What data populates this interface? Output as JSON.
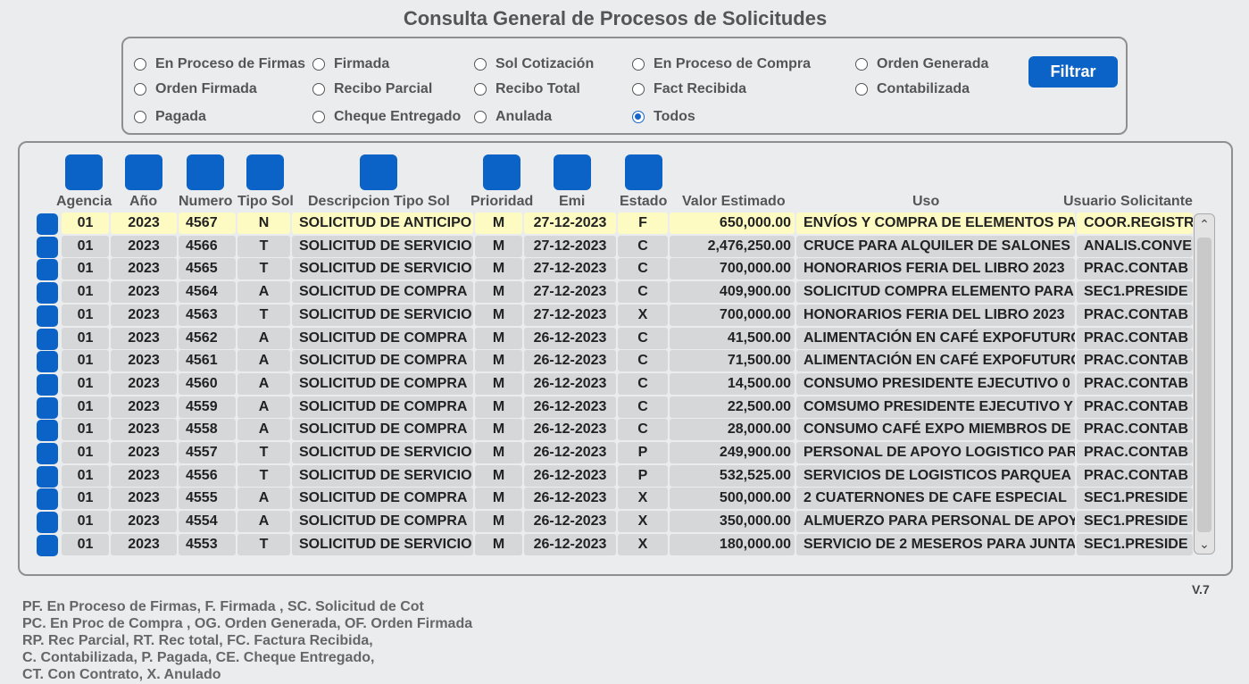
{
  "title": "Consulta General de Procesos de Solicitudes",
  "filters": [
    {
      "label": "En Proceso de Firmas",
      "selected": false
    },
    {
      "label": "Firmada",
      "selected": false
    },
    {
      "label": "Sol Cotización",
      "selected": false
    },
    {
      "label": "En Proceso de Compra",
      "selected": false
    },
    {
      "label": "Orden Generada",
      "selected": false
    },
    {
      "label": "Orden Firmada",
      "selected": false
    },
    {
      "label": "Recibo Parcial",
      "selected": false
    },
    {
      "label": "Recibo Total",
      "selected": false
    },
    {
      "label": "Fact Recibida",
      "selected": false
    },
    {
      "label": "Contabilizada",
      "selected": false
    },
    {
      "label": "Pagada",
      "selected": false
    },
    {
      "label": "Cheque Entregado",
      "selected": false
    },
    {
      "label": "Anulada",
      "selected": false
    },
    {
      "label": "Todos",
      "selected": true
    }
  ],
  "filter_button": "Filtrar",
  "columns": [
    "Agencia",
    "Año",
    "Numero",
    "Tipo Sol",
    "Descripcion Tipo Sol",
    "Prioridad",
    "Emi",
    "Estado",
    "Valor Estimado",
    "Uso",
    "Usuario Solicitante"
  ],
  "rows": [
    [
      "01",
      "2023",
      "4567",
      "N",
      "SOLICITUD DE ANTICIPO",
      "M",
      "27-12-2023",
      "F",
      "650,000.00",
      "ENVÍOS Y COMPRA DE ELEMENTOS PA",
      "COOR.REGISTR"
    ],
    [
      "01",
      "2023",
      "4566",
      "T",
      "SOLICITUD DE SERVICIO",
      "M",
      "27-12-2023",
      "C",
      "2,476,250.00",
      "CRUCE PARA ALQUILER DE SALONES",
      "ANALIS.CONVE"
    ],
    [
      "01",
      "2023",
      "4565",
      "T",
      "SOLICITUD DE SERVICIO",
      "M",
      "27-12-2023",
      "C",
      "700,000.00",
      "HONORARIOS FERIA DEL LIBRO 2023",
      "PRAC.CONTAB"
    ],
    [
      "01",
      "2023",
      "4564",
      "A",
      "SOLICITUD DE COMPRA",
      "M",
      "27-12-2023",
      "C",
      "409,900.00",
      "SOLICITUD COMPRA ELEMENTO PARA",
      "SEC1.PRESIDE"
    ],
    [
      "01",
      "2023",
      "4563",
      "T",
      "SOLICITUD DE SERVICIO",
      "M",
      "27-12-2023",
      "X",
      "700,000.00",
      "HONORARIOS FERIA DEL LIBRO 2023",
      "PRAC.CONTAB"
    ],
    [
      "01",
      "2023",
      "4562",
      "A",
      "SOLICITUD DE COMPRA",
      "M",
      "26-12-2023",
      "C",
      "41,500.00",
      "ALIMENTACIÓN EN CAFÉ EXPOFUTURO",
      "PRAC.CONTAB"
    ],
    [
      "01",
      "2023",
      "4561",
      "A",
      "SOLICITUD DE COMPRA",
      "M",
      "26-12-2023",
      "C",
      "71,500.00",
      "ALIMENTACIÓN EN CAFÉ EXPOFUTURO",
      "PRAC.CONTAB"
    ],
    [
      "01",
      "2023",
      "4560",
      "A",
      "SOLICITUD DE COMPRA",
      "M",
      "26-12-2023",
      "C",
      "14,500.00",
      "CONSUMO PRESIDENTE EJECUTIVO 0",
      "PRAC.CONTAB"
    ],
    [
      "01",
      "2023",
      "4559",
      "A",
      "SOLICITUD DE COMPRA",
      "M",
      "26-12-2023",
      "C",
      "22,500.00",
      "COMSUMO PRESIDENTE EJECUTIVO Y",
      "PRAC.CONTAB"
    ],
    [
      "01",
      "2023",
      "4558",
      "A",
      "SOLICITUD DE COMPRA",
      "M",
      "26-12-2023",
      "C",
      "28,000.00",
      "CONSUMO CAFÉ EXPO MIEMBROS DE",
      "PRAC.CONTAB"
    ],
    [
      "01",
      "2023",
      "4557",
      "T",
      "SOLICITUD DE SERVICIO",
      "M",
      "26-12-2023",
      "P",
      "249,900.00",
      "PERSONAL DE APOYO LOGISTICO PARA",
      "PRAC.CONTAB"
    ],
    [
      "01",
      "2023",
      "4556",
      "T",
      "SOLICITUD DE SERVICIO",
      "M",
      "26-12-2023",
      "P",
      "532,525.00",
      "SERVICIOS DE LOGISTICOS PARQUEA",
      "PRAC.CONTAB"
    ],
    [
      "01",
      "2023",
      "4555",
      "A",
      "SOLICITUD DE COMPRA",
      "M",
      "26-12-2023",
      "X",
      "500,000.00",
      "2 CUATERNONES DE CAFE ESPECIAL",
      "SEC1.PRESIDE"
    ],
    [
      "01",
      "2023",
      "4554",
      "A",
      "SOLICITUD DE COMPRA",
      "M",
      "26-12-2023",
      "X",
      "350,000.00",
      "ALMUERZO PARA PERSONAL DE APOYO",
      "SEC1.PRESIDE"
    ],
    [
      "01",
      "2023",
      "4553",
      "T",
      "SOLICITUD DE SERVICIO",
      "M",
      "26-12-2023",
      "X",
      "180,000.00",
      "SERVICIO DE 2 MESEROS PARA JUNTA",
      "SEC1.PRESIDE"
    ]
  ],
  "version": "V.7",
  "legend": [
    "PF. En Proceso de Firmas, F. Firmada , SC. Solicitud de Cot",
    "PC. En Proc de Compra , OG. Orden Generada, OF. Orden Firmada",
    "RP. Rec Parcial, RT.  Rec total, FC. Factura Recibida,",
    "C. Contabilizada, P. Pagada, CE. Cheque Entregado,",
    "CT. Con Contrato, X. Anulado"
  ],
  "colors": {
    "accent": "#0b63c8",
    "highlight_row": "#fdfbc2",
    "cell_bg": "#d6d7d9",
    "background": "#ebecee"
  }
}
